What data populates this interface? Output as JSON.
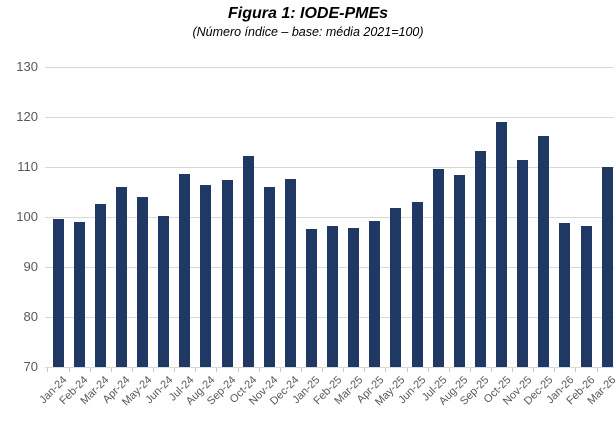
{
  "title": "Figura 1: IODE-PMEs",
  "subtitle": "(Número índice – base: média 2021=100)",
  "chart_data": {
    "type": "bar",
    "title": "Figura 1: IODE-PMEs",
    "subtitle": "(Número índice – base: média 2021=100)",
    "categories": [
      "Jan-24",
      "Feb-24",
      "Mar-24",
      "Apr-24",
      "May-24",
      "Jun-24",
      "Jul-24",
      "Aug-24",
      "Sep-24",
      "Oct-24",
      "Nov-24",
      "Dec-24",
      "Jan-25",
      "Feb-25",
      "Mar-25",
      "Apr-25",
      "May-25",
      "Jun-25",
      "Jul-25",
      "Aug-25",
      "Sep-25",
      "Oct-25",
      "Nov-25",
      "Dec-25",
      "Jan-26",
      "Feb-26",
      "Mar-26"
    ],
    "values": [
      99.6,
      99.0,
      102.7,
      106.1,
      104.0,
      100.3,
      108.6,
      106.4,
      107.5,
      112.2,
      106.1,
      107.6,
      97.6,
      98.3,
      97.9,
      99.2,
      101.8,
      103.0,
      109.6,
      108.5,
      113.3,
      119.1,
      111.4,
      116.2,
      98.8,
      98.2,
      110.0
    ],
    "xlabel": "",
    "ylabel": "",
    "ylim": [
      70,
      130
    ],
    "yticks": [
      70,
      80,
      90,
      100,
      110,
      120,
      130
    ],
    "grid": true,
    "legend": "none",
    "bar_color": "#1f3864",
    "gridline_color": "#d9d9d9",
    "axis_label_color": "#595959"
  }
}
